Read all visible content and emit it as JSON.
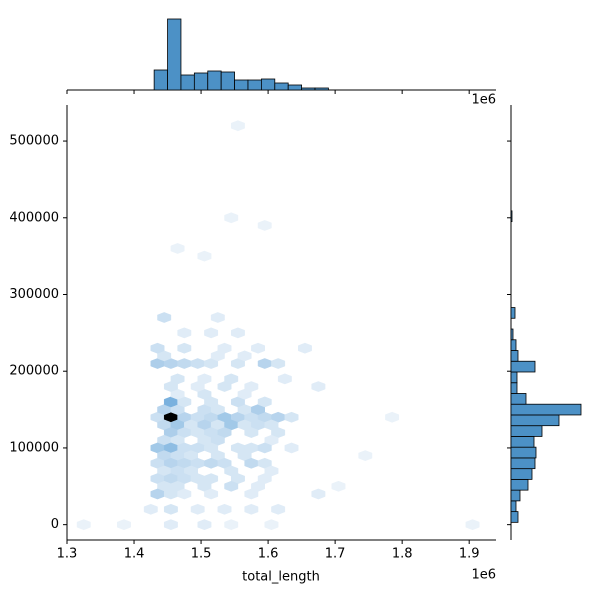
{
  "chart_data": [
    {
      "type": "hexbin",
      "x_label": "total_length",
      "x_offset": "1e6",
      "xlim": [
        1.3,
        1.94
      ],
      "ylim": [
        -20000,
        547000
      ],
      "xticks": [
        1.3,
        1.4,
        1.5,
        1.6,
        1.7,
        1.8,
        1.9
      ],
      "yticks": [
        0,
        100000,
        200000,
        300000,
        400000,
        500000
      ],
      "hex_width": 0.02,
      "hex_height": 10000,
      "cmap": [
        "#f4f8fc",
        "#5b9fd6",
        "#000000"
      ],
      "hexes": [
        [
          1.435,
          140000,
          4
        ],
        [
          1.455,
          140000,
          30
        ],
        [
          1.475,
          140000,
          6
        ],
        [
          1.495,
          140000,
          4
        ],
        [
          1.515,
          140000,
          5
        ],
        [
          1.535,
          140000,
          8
        ],
        [
          1.555,
          140000,
          6
        ],
        [
          1.575,
          140000,
          4
        ],
        [
          1.595,
          140000,
          5
        ],
        [
          1.615,
          140000,
          6
        ],
        [
          1.635,
          140000,
          3
        ],
        [
          1.785,
          140000,
          1
        ],
        [
          1.445,
          150000,
          6
        ],
        [
          1.465,
          150000,
          4
        ],
        [
          1.505,
          150000,
          4
        ],
        [
          1.525,
          150000,
          3
        ],
        [
          1.565,
          150000,
          3
        ],
        [
          1.585,
          150000,
          7
        ],
        [
          1.455,
          160000,
          12
        ],
        [
          1.475,
          160000,
          3
        ],
        [
          1.515,
          160000,
          3
        ],
        [
          1.555,
          160000,
          4
        ],
        [
          1.595,
          160000,
          3
        ],
        [
          1.445,
          130000,
          5
        ],
        [
          1.465,
          130000,
          8
        ],
        [
          1.485,
          130000,
          3
        ],
        [
          1.505,
          130000,
          6
        ],
        [
          1.525,
          130000,
          3
        ],
        [
          1.545,
          130000,
          8
        ],
        [
          1.565,
          130000,
          3
        ],
        [
          1.585,
          130000,
          4
        ],
        [
          1.605,
          130000,
          3
        ],
        [
          1.455,
          120000,
          7
        ],
        [
          1.475,
          120000,
          4
        ],
        [
          1.495,
          120000,
          3
        ],
        [
          1.515,
          120000,
          4
        ],
        [
          1.535,
          120000,
          5
        ],
        [
          1.575,
          120000,
          3
        ],
        [
          1.615,
          120000,
          3
        ],
        [
          1.445,
          110000,
          4
        ],
        [
          1.465,
          110000,
          3
        ],
        [
          1.505,
          110000,
          3
        ],
        [
          1.525,
          110000,
          4
        ],
        [
          1.605,
          110000,
          2
        ],
        [
          1.435,
          100000,
          8
        ],
        [
          1.455,
          100000,
          10
        ],
        [
          1.475,
          100000,
          4
        ],
        [
          1.495,
          100000,
          4
        ],
        [
          1.515,
          100000,
          3
        ],
        [
          1.555,
          100000,
          3
        ],
        [
          1.575,
          100000,
          3
        ],
        [
          1.595,
          100000,
          4
        ],
        [
          1.635,
          100000,
          2
        ],
        [
          1.445,
          90000,
          5
        ],
        [
          1.465,
          90000,
          4
        ],
        [
          1.485,
          90000,
          3
        ],
        [
          1.525,
          90000,
          3
        ],
        [
          1.565,
          90000,
          3
        ],
        [
          1.745,
          90000,
          1
        ],
        [
          1.435,
          80000,
          4
        ],
        [
          1.455,
          80000,
          6
        ],
        [
          1.475,
          80000,
          5
        ],
        [
          1.495,
          80000,
          4
        ],
        [
          1.515,
          80000,
          5
        ],
        [
          1.535,
          80000,
          4
        ],
        [
          1.575,
          80000,
          5
        ],
        [
          1.595,
          80000,
          3
        ],
        [
          1.445,
          70000,
          3
        ],
        [
          1.465,
          70000,
          4
        ],
        [
          1.485,
          70000,
          3
        ],
        [
          1.545,
          70000,
          3
        ],
        [
          1.605,
          70000,
          2
        ],
        [
          1.435,
          60000,
          4
        ],
        [
          1.455,
          60000,
          5
        ],
        [
          1.475,
          60000,
          4
        ],
        [
          1.495,
          60000,
          3
        ],
        [
          1.515,
          60000,
          3
        ],
        [
          1.555,
          60000,
          3
        ],
        [
          1.595,
          60000,
          2
        ],
        [
          1.445,
          50000,
          3
        ],
        [
          1.465,
          50000,
          3
        ],
        [
          1.505,
          50000,
          3
        ],
        [
          1.545,
          50000,
          4
        ],
        [
          1.585,
          50000,
          2
        ],
        [
          1.705,
          50000,
          1
        ],
        [
          1.435,
          40000,
          6
        ],
        [
          1.455,
          40000,
          3
        ],
        [
          1.475,
          40000,
          2
        ],
        [
          1.515,
          40000,
          2
        ],
        [
          1.575,
          40000,
          2
        ],
        [
          1.675,
          40000,
          2
        ],
        [
          1.425,
          20000,
          2
        ],
        [
          1.455,
          20000,
          3
        ],
        [
          1.495,
          20000,
          2
        ],
        [
          1.535,
          20000,
          2
        ],
        [
          1.575,
          20000,
          2
        ],
        [
          1.615,
          20000,
          2
        ],
        [
          1.325,
          0,
          1
        ],
        [
          1.385,
          0,
          1
        ],
        [
          1.455,
          0,
          2
        ],
        [
          1.505,
          0,
          2
        ],
        [
          1.545,
          0,
          1
        ],
        [
          1.605,
          0,
          1
        ],
        [
          1.905,
          0,
          1
        ],
        [
          1.465,
          170000,
          2
        ],
        [
          1.505,
          170000,
          3
        ],
        [
          1.565,
          170000,
          2
        ],
        [
          1.455,
          180000,
          3
        ],
        [
          1.495,
          180000,
          2
        ],
        [
          1.535,
          180000,
          3
        ],
        [
          1.575,
          180000,
          2
        ],
        [
          1.675,
          180000,
          2
        ],
        [
          1.465,
          190000,
          3
        ],
        [
          1.505,
          190000,
          2
        ],
        [
          1.545,
          190000,
          3
        ],
        [
          1.625,
          190000,
          2
        ],
        [
          1.435,
          210000,
          7
        ],
        [
          1.455,
          210000,
          6
        ],
        [
          1.475,
          210000,
          5
        ],
        [
          1.495,
          210000,
          4
        ],
        [
          1.515,
          210000,
          3
        ],
        [
          1.555,
          210000,
          3
        ],
        [
          1.595,
          210000,
          6
        ],
        [
          1.615,
          210000,
          3
        ],
        [
          1.445,
          220000,
          3
        ],
        [
          1.525,
          220000,
          2
        ],
        [
          1.565,
          220000,
          2
        ],
        [
          1.435,
          230000,
          4
        ],
        [
          1.475,
          230000,
          3
        ],
        [
          1.535,
          230000,
          2
        ],
        [
          1.585,
          230000,
          2
        ],
        [
          1.655,
          230000,
          2
        ],
        [
          1.475,
          250000,
          2
        ],
        [
          1.515,
          250000,
          2
        ],
        [
          1.555,
          250000,
          2
        ],
        [
          1.445,
          270000,
          4
        ],
        [
          1.525,
          270000,
          2
        ],
        [
          1.505,
          350000,
          1
        ],
        [
          1.465,
          360000,
          1
        ],
        [
          1.595,
          390000,
          1
        ],
        [
          1.545,
          400000,
          1
        ],
        [
          1.555,
          520000,
          1
        ]
      ]
    },
    {
      "type": "histogram",
      "orientation": "vertical",
      "x_offset": "1e6",
      "color": "#4c91c6",
      "bins": [
        1.43,
        1.45,
        1.47,
        1.49,
        1.51,
        1.53,
        1.55,
        1.57,
        1.59,
        1.61,
        1.63,
        1.65,
        1.67,
        1.69
      ],
      "counts": [
        20,
        71,
        15,
        17,
        19,
        18,
        10,
        10,
        11,
        7,
        5,
        2,
        2
      ]
    },
    {
      "type": "histogram",
      "orientation": "horizontal",
      "color": "#4c91c6",
      "bins": [
        3000,
        17000,
        31000,
        45000,
        59000,
        73000,
        87000,
        101000,
        115000,
        129000,
        143000,
        157000,
        171000,
        185000,
        199000,
        213000,
        227000,
        241000,
        255000,
        269000,
        283000,
        297000,
        311000,
        325000,
        339000,
        353000,
        367000,
        381000,
        395000,
        409000
      ],
      "counts": [
        7,
        5,
        9,
        17,
        21,
        24,
        25,
        23,
        31,
        48,
        70,
        15,
        6,
        6,
        24,
        7,
        5,
        2,
        0,
        4,
        0,
        0,
        0,
        0,
        0,
        0,
        0,
        0,
        1
      ]
    }
  ]
}
